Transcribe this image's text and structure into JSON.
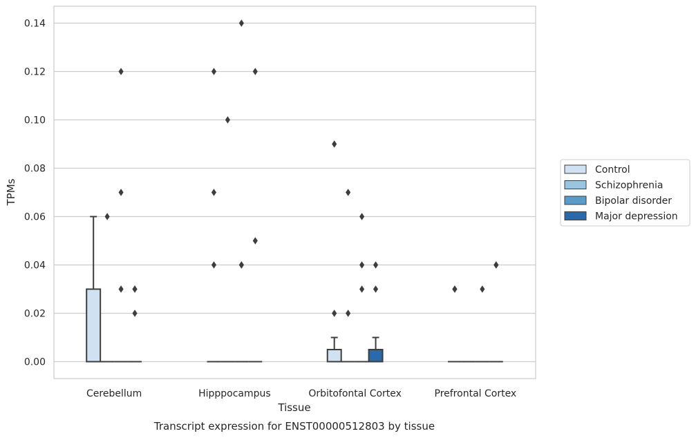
{
  "chart_data": {
    "type": "box",
    "xlabel": "Tissue",
    "ylabel": "TPMs",
    "caption": "Transcript expression for ENST00000512803 by tissue",
    "ylim": [
      -0.007,
      0.147
    ],
    "yticks": [
      "0.00",
      "0.02",
      "0.04",
      "0.06",
      "0.08",
      "0.10",
      "0.12",
      "0.14"
    ],
    "ytick_values": [
      0.0,
      0.02,
      0.04,
      0.06,
      0.08,
      0.1,
      0.12,
      0.14
    ],
    "grid": true,
    "legend_position": "right",
    "categories": [
      "Cerebellum",
      "Hipppocampus",
      "Orbitofontal Cortex",
      "Prefrontal Cortex"
    ],
    "series": [
      {
        "name": "Control",
        "color": "#d0e1f2",
        "boxes": [
          {
            "q1": 0.0,
            "median": 0.0,
            "q3": 0.03,
            "whisker_low": 0.0,
            "whisker_high": 0.06,
            "outliers": []
          },
          {
            "q1": 0.0,
            "median": 0.0,
            "q3": 0.0,
            "whisker_low": 0.0,
            "whisker_high": 0.0,
            "outliers": [
              0.12,
              0.07,
              0.04
            ]
          },
          {
            "q1": 0.0,
            "median": 0.0,
            "q3": 0.005,
            "whisker_low": 0.0,
            "whisker_high": 0.01,
            "outliers": [
              0.09,
              0.02
            ]
          },
          {
            "q1": 0.0,
            "median": 0.0,
            "q3": 0.0,
            "whisker_low": 0.0,
            "whisker_high": 0.0,
            "outliers": [
              0.03,
              0.03
            ]
          }
        ]
      },
      {
        "name": "Schizophrenia",
        "color": "#9ac4df",
        "boxes": [
          {
            "q1": 0.0,
            "median": 0.0,
            "q3": 0.0,
            "whisker_low": 0.0,
            "whisker_high": 0.0,
            "outliers": [
              0.06
            ]
          },
          {
            "q1": 0.0,
            "median": 0.0,
            "q3": 0.0,
            "whisker_low": 0.0,
            "whisker_high": 0.0,
            "outliers": [
              0.1
            ]
          },
          {
            "q1": 0.0,
            "median": 0.0,
            "q3": 0.0,
            "whisker_low": 0.0,
            "whisker_high": 0.0,
            "outliers": [
              0.07,
              0.02
            ]
          },
          {
            "q1": 0.0,
            "median": 0.0,
            "q3": 0.0,
            "whisker_low": 0.0,
            "whisker_high": 0.0,
            "outliers": []
          }
        ]
      },
      {
        "name": "Bipolar disorder",
        "color": "#5a9bc9",
        "boxes": [
          {
            "q1": 0.0,
            "median": 0.0,
            "q3": 0.0,
            "whisker_low": 0.0,
            "whisker_high": 0.0,
            "outliers": [
              0.12,
              0.07,
              0.03
            ]
          },
          {
            "q1": 0.0,
            "median": 0.0,
            "q3": 0.0,
            "whisker_low": 0.0,
            "whisker_high": 0.0,
            "outliers": [
              0.14,
              0.04,
              0.04
            ]
          },
          {
            "q1": 0.0,
            "median": 0.0,
            "q3": 0.0,
            "whisker_low": 0.0,
            "whisker_high": 0.0,
            "outliers": [
              0.06,
              0.04,
              0.03
            ]
          },
          {
            "q1": 0.0,
            "median": 0.0,
            "q3": 0.0,
            "whisker_low": 0.0,
            "whisker_high": 0.0,
            "outliers": [
              0.03
            ]
          }
        ]
      },
      {
        "name": "Major depression",
        "color": "#2a6aaa",
        "boxes": [
          {
            "q1": 0.0,
            "median": 0.0,
            "q3": 0.0,
            "whisker_low": 0.0,
            "whisker_high": 0.0,
            "outliers": [
              0.03,
              0.03,
              0.02
            ]
          },
          {
            "q1": 0.0,
            "median": 0.0,
            "q3": 0.0,
            "whisker_low": 0.0,
            "whisker_high": 0.0,
            "outliers": [
              0.12,
              0.05
            ]
          },
          {
            "q1": 0.0,
            "median": 0.0,
            "q3": 0.005,
            "whisker_low": 0.0,
            "whisker_high": 0.01,
            "outliers": [
              0.04,
              0.03
            ]
          },
          {
            "q1": 0.0,
            "median": 0.0,
            "q3": 0.0,
            "whisker_low": 0.0,
            "whisker_high": 0.0,
            "outliers": [
              0.04,
              0.04
            ]
          }
        ]
      }
    ]
  }
}
